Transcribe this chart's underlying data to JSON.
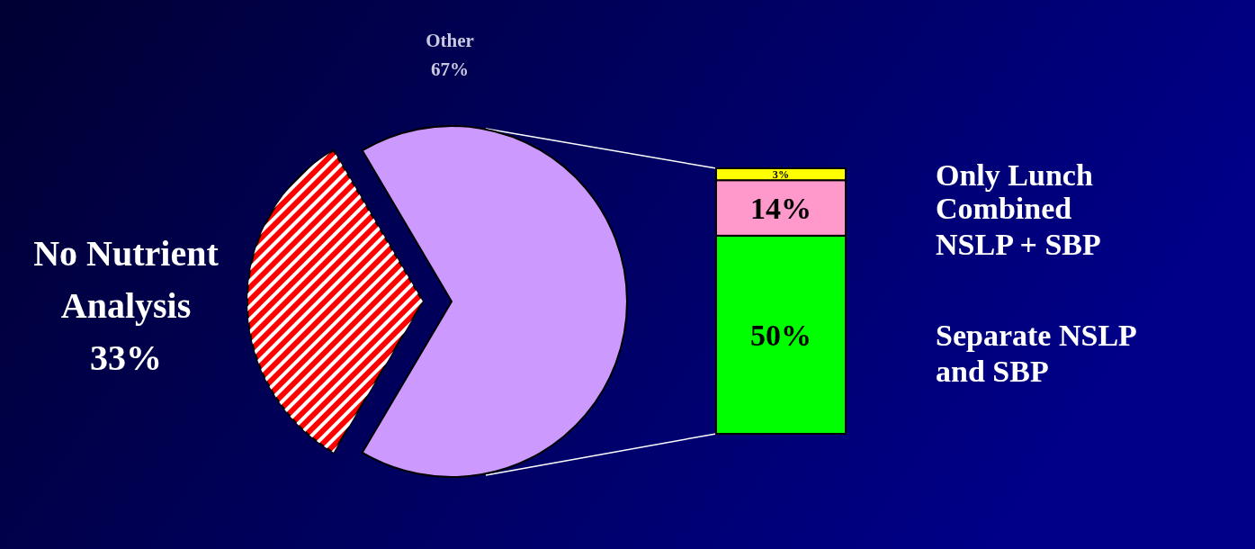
{
  "chart_data": [
    {
      "type": "pie",
      "categories": [
        "No Nutrient Analysis",
        "Other"
      ],
      "values": [
        33,
        67
      ],
      "colors": [
        "#ff0000",
        "#cc99ff"
      ],
      "value_labels": [
        "33%",
        "67%"
      ]
    },
    {
      "type": "bar",
      "stacked": true,
      "categories": [
        null
      ],
      "series": [
        {
          "name": "Separate NSLP and SBP",
          "color": "#00ff00",
          "values": [
            50
          ],
          "value_labels": [
            "50%"
          ]
        },
        {
          "name": "Combined NSLP + SBP",
          "color": "#ff99cc",
          "values": [
            14
          ],
          "value_labels": [
            "14%"
          ]
        },
        {
          "name": "Only Lunch",
          "color": "#ffff00",
          "values": [
            3
          ],
          "value_labels": [
            "3%"
          ]
        }
      ]
    }
  ]
}
